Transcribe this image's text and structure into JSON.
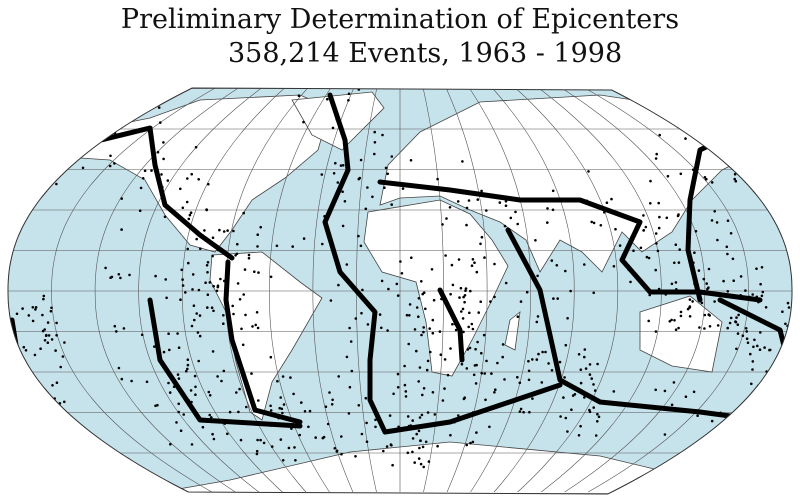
{
  "title": "Preliminary Determination of Epicenters",
  "subtitle": "358,214 Events, 1963 - 1998",
  "map": {
    "projection": "Robinson",
    "graticule": true,
    "colors": {
      "ocean": "#c6e3ec",
      "land": "#ffffff",
      "epicenters": "#000000",
      "grid": "#555555",
      "borders": "#444444"
    }
  }
}
